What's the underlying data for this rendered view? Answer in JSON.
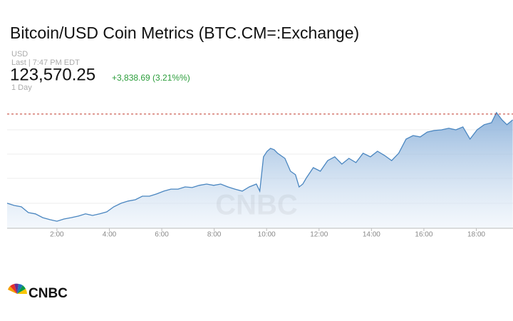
{
  "chart_data": {
    "type": "line",
    "title": "Bitcoin/USD Coin Metrics (BTC.CM=:Exchange)",
    "currency": "USD",
    "last_time": "Last | 7:47 PM EDT",
    "price": "123,570.25",
    "change": "+3,838.69 (3.21%%)",
    "period": "1 Day",
    "brand": "CNBC",
    "xlim": [
      0.1,
      19.4
    ],
    "xticks": [
      {
        "value": 2,
        "label": "2:00"
      },
      {
        "value": 4,
        "label": "4:00"
      },
      {
        "value": 6,
        "label": "6:00"
      },
      {
        "value": 8,
        "label": "8:00"
      },
      {
        "value": 10,
        "label": "10:00"
      },
      {
        "value": 12,
        "label": "12:00"
      },
      {
        "value": 14,
        "label": "14:00"
      },
      {
        "value": 16,
        "label": "16:00"
      },
      {
        "value": 18,
        "label": "18:00"
      }
    ],
    "ylim": [
      118670,
      124150
    ],
    "reference_line": 123830,
    "x": [
      0.1,
      0.37,
      0.64,
      0.91,
      1.18,
      1.46,
      1.73,
      2.0,
      2.27,
      2.54,
      2.82,
      3.09,
      3.36,
      3.63,
      3.9,
      4.17,
      4.45,
      4.72,
      4.99,
      5.26,
      5.53,
      5.8,
      6.08,
      6.35,
      6.62,
      6.89,
      7.16,
      7.43,
      7.71,
      7.98,
      8.25,
      8.52,
      8.79,
      9.07,
      9.34,
      9.61,
      9.74,
      9.88,
      10.02,
      10.15,
      10.29,
      10.42,
      10.7,
      10.91,
      11.1,
      11.24,
      11.38,
      11.51,
      11.78,
      12.05,
      12.33,
      12.6,
      12.87,
      13.14,
      13.41,
      13.68,
      13.96,
      14.23,
      14.5,
      14.77,
      15.04,
      15.32,
      15.59,
      15.86,
      16.13,
      16.4,
      16.67,
      16.95,
      17.22,
      17.49,
      17.76,
      18.03,
      18.3,
      18.58,
      18.77,
      18.98,
      19.17,
      19.39
    ],
    "series": [
      {
        "name": "BTC",
        "color": "#4a86c0",
        "values": [
          119800,
          119700,
          119640,
          119380,
          119320,
          119150,
          119060,
          118990,
          119090,
          119150,
          119220,
          119320,
          119250,
          119320,
          119410,
          119640,
          119800,
          119900,
          119960,
          120120,
          120120,
          120220,
          120350,
          120440,
          120440,
          120540,
          120510,
          120610,
          120670,
          120610,
          120670,
          120540,
          120440,
          120350,
          120540,
          120670,
          120350,
          121900,
          122150,
          122280,
          122220,
          122060,
          121830,
          121250,
          121090,
          120540,
          120670,
          120930,
          121410,
          121250,
          121730,
          121900,
          121570,
          121830,
          121640,
          122060,
          121900,
          122150,
          121960,
          121730,
          122060,
          122700,
          122860,
          122800,
          123020,
          123090,
          123120,
          123190,
          123120,
          123250,
          122700,
          123120,
          123350,
          123440,
          123900,
          123570,
          123350,
          123570
        ]
      }
    ]
  }
}
